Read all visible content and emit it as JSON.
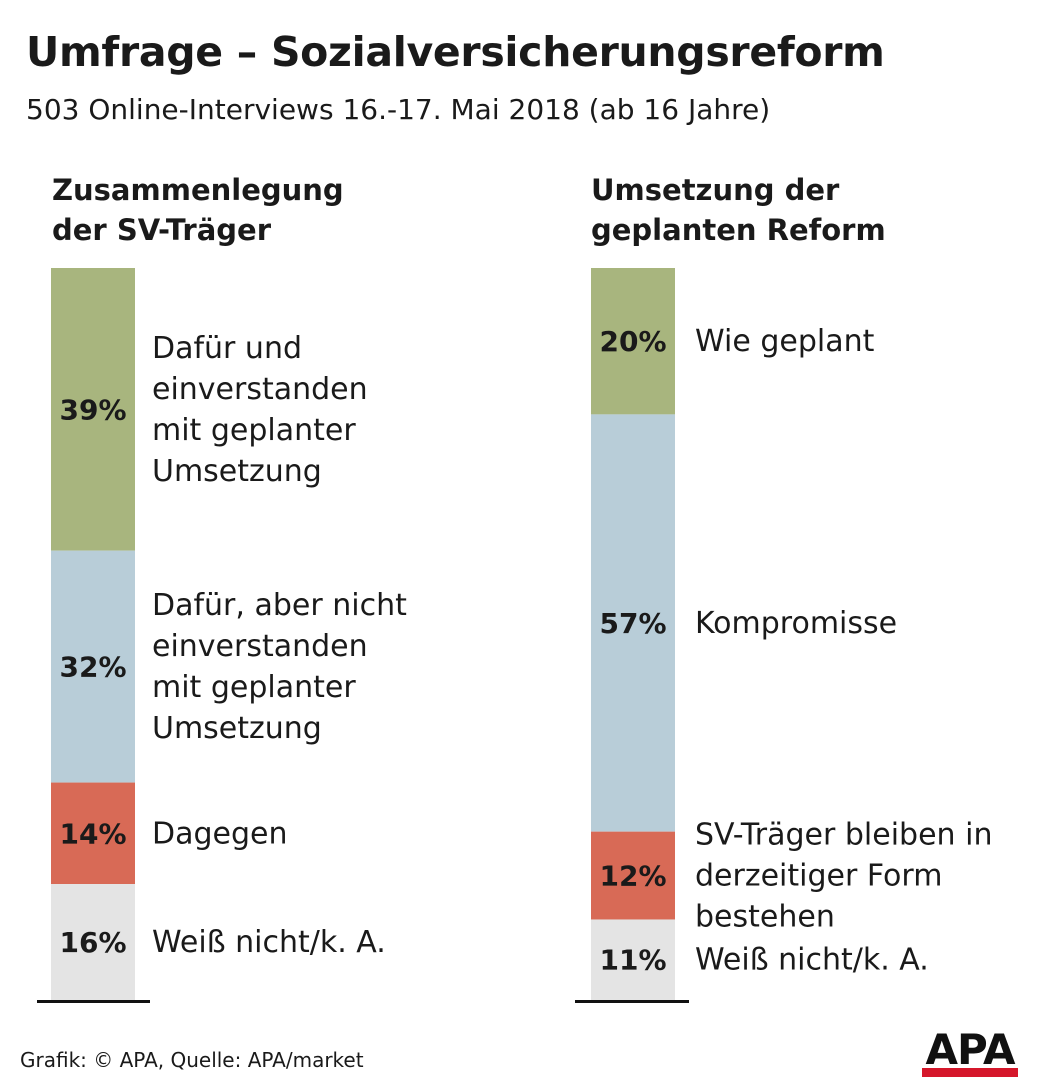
{
  "header": {
    "title": "Umfrage – Sozialversicherungsreform",
    "subtitle": "503 Online-Interviews 16.-17. Mai 2018 (ab 16 Jahre)"
  },
  "chart_data": [
    {
      "type": "bar",
      "stacked": true,
      "orientation": "vertical",
      "title_lines": [
        "Zusammenlegung",
        "der SV-Träger"
      ],
      "value_unit": "%",
      "segments": [
        {
          "label_lines": [
            "Dafür und",
            "einverstanden",
            "mit geplanter",
            "Umsetzung"
          ],
          "value": 39,
          "color": "#a8b57e"
        },
        {
          "label_lines": [
            "Dafür, aber nicht",
            "einverstanden",
            "mit geplanter",
            "Umsetzung"
          ],
          "value": 32,
          "color": "#b8cdd8"
        },
        {
          "label_lines": [
            "Dagegen"
          ],
          "value": 14,
          "color": "#d86a56"
        },
        {
          "label_lines": [
            "Weiß nicht/k. A."
          ],
          "value": 16,
          "color": "#e4e4e4"
        }
      ]
    },
    {
      "type": "bar",
      "stacked": true,
      "orientation": "vertical",
      "title_lines": [
        "Umsetzung der",
        "geplanten Reform"
      ],
      "value_unit": "%",
      "segments": [
        {
          "label_lines": [
            "Wie geplant"
          ],
          "value": 20,
          "color": "#a8b57e"
        },
        {
          "label_lines": [
            "Kompromisse"
          ],
          "value": 57,
          "color": "#b8cdd8"
        },
        {
          "label_lines": [
            "SV-Träger bleiben in",
            "derzeitiger Form",
            "bestehen"
          ],
          "value": 12,
          "color": "#d86a56"
        },
        {
          "label_lines": [
            "Weiß nicht/k. A."
          ],
          "value": 11,
          "color": "#e4e4e4"
        }
      ]
    }
  ],
  "footer": {
    "source": "Grafik: © APA, Quelle: APA/market",
    "logo_text": "APA"
  }
}
